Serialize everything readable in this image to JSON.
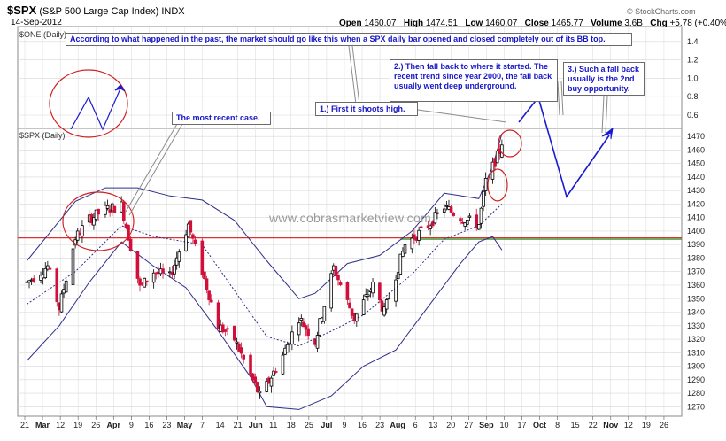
{
  "header": {
    "symbol": "$SPX",
    "name": "(S&P 500 Large Cap Index)",
    "exchange": "INDX",
    "date": "14-Sep-2012",
    "source": "© StockCharts.com",
    "open_label": "Open",
    "open": "1460.07",
    "high_label": "High",
    "high": "1474.51",
    "low_label": "Low",
    "low": "1460.07",
    "close_label": "Close",
    "close": "1465.77",
    "volume_label": "Volume",
    "volume": "3.6B",
    "chg_label": "Chg",
    "chg": "+5.78 (+0.40%)"
  },
  "panels": {
    "top_label": "$ONE (Daily)",
    "main_label": "$SPX (Daily)"
  },
  "annotations": {
    "top_note": "According to what happened in the past, the market should go like this when a SPX daily bar opened and closed completely out of its BB top.",
    "recent_case": "The most recent case.",
    "step1": "1.) First it shoots high.",
    "step2": "2.) Then fall back to where it started. The recent trend since year 2000, the fall back usually went deep underground.",
    "step3": "3.) Such a fall back usually is the 2nd buy opportunity.",
    "watermark": "www.cobrasmarketview.com"
  },
  "colors": {
    "up": "#000000",
    "down": "#d0103a",
    "bollinger": "#2e2e8c",
    "midband": "#2e2e8c",
    "red_line": "#e03030",
    "green_line": "#2ea02e",
    "arrow": "#1a1ad0",
    "circle": "#d02020",
    "grid": "#d8d8d8"
  },
  "chart_data": {
    "type": "candlestick",
    "title": "$SPX (S&P 500 Large Cap Index)",
    "y_ticks": [
      1270,
      1280,
      1290,
      1300,
      1310,
      1320,
      1330,
      1340,
      1350,
      1360,
      1370,
      1380,
      1390,
      1400,
      1410,
      1420,
      1430,
      1440,
      1450,
      1460,
      1470
    ],
    "ylim": [
      1263,
      1476
    ],
    "top_panel_ticks": [
      "0.6",
      "0.8",
      "1.0",
      "1.2",
      "1.4"
    ],
    "x_tick_labels": [
      "21",
      "Mar",
      "12",
      "19",
      "26",
      "Apr",
      "9",
      "16",
      "23",
      "May",
      "7",
      "14",
      "21",
      "Jun",
      "11",
      "18",
      "25",
      "Jul",
      "9",
      "16",
      "23",
      "Aug",
      "6",
      "13",
      "20",
      "27",
      "Sep",
      "10",
      "17",
      "Oct",
      "8",
      "15",
      "22",
      "Nov",
      "12",
      "19",
      "26"
    ],
    "close_path": [
      {
        "x": "2012-02-21",
        "y": 1362
      },
      {
        "x": "2012-03-01",
        "y": 1374
      },
      {
        "x": "2012-03-06",
        "y": 1343
      },
      {
        "x": "2012-03-13",
        "y": 1395
      },
      {
        "x": "2012-03-19",
        "y": 1409
      },
      {
        "x": "2012-03-26",
        "y": 1416
      },
      {
        "x": "2012-04-02",
        "y": 1419
      },
      {
        "x": "2012-04-10",
        "y": 1358
      },
      {
        "x": "2012-04-16",
        "y": 1370
      },
      {
        "x": "2012-04-23",
        "y": 1366
      },
      {
        "x": "2012-05-01",
        "y": 1405
      },
      {
        "x": "2012-05-07",
        "y": 1370
      },
      {
        "x": "2012-05-14",
        "y": 1330
      },
      {
        "x": "2012-05-21",
        "y": 1320
      },
      {
        "x": "2012-06-01",
        "y": 1278
      },
      {
        "x": "2012-06-04",
        "y": 1286
      },
      {
        "x": "2012-06-11",
        "y": 1308
      },
      {
        "x": "2012-06-18",
        "y": 1336
      },
      {
        "x": "2012-06-25",
        "y": 1318
      },
      {
        "x": "2012-07-03",
        "y": 1373
      },
      {
        "x": "2012-07-12",
        "y": 1335
      },
      {
        "x": "2012-07-20",
        "y": 1360
      },
      {
        "x": "2012-07-25",
        "y": 1340
      },
      {
        "x": "2012-08-03",
        "y": 1390
      },
      {
        "x": "2012-08-13",
        "y": 1404
      },
      {
        "x": "2012-08-20",
        "y": 1418
      },
      {
        "x": "2012-08-27",
        "y": 1410
      },
      {
        "x": "2012-09-04",
        "y": 1405
      },
      {
        "x": "2012-09-07",
        "y": 1437
      },
      {
        "x": "2012-09-13",
        "y": 1459
      },
      {
        "x": "2012-09-14",
        "y": 1466
      }
    ],
    "bb_upper": [
      {
        "x": "2012-02-21",
        "y": 1378
      },
      {
        "x": "2012-03-13",
        "y": 1422
      },
      {
        "x": "2012-03-26",
        "y": 1432
      },
      {
        "x": "2012-04-09",
        "y": 1432
      },
      {
        "x": "2012-04-23",
        "y": 1426
      },
      {
        "x": "2012-05-07",
        "y": 1423
      },
      {
        "x": "2012-05-21",
        "y": 1408
      },
      {
        "x": "2012-06-04",
        "y": 1378
      },
      {
        "x": "2012-06-18",
        "y": 1350
      },
      {
        "x": "2012-06-25",
        "y": 1354
      },
      {
        "x": "2012-07-09",
        "y": 1376
      },
      {
        "x": "2012-07-23",
        "y": 1382
      },
      {
        "x": "2012-08-06",
        "y": 1400
      },
      {
        "x": "2012-08-20",
        "y": 1428
      },
      {
        "x": "2012-09-04",
        "y": 1424
      },
      {
        "x": "2012-09-10",
        "y": 1448
      },
      {
        "x": "2012-09-14",
        "y": 1472
      }
    ],
    "bb_lower": [
      {
        "x": "2012-02-21",
        "y": 1304
      },
      {
        "x": "2012-03-06",
        "y": 1330
      },
      {
        "x": "2012-03-19",
        "y": 1362
      },
      {
        "x": "2012-04-02",
        "y": 1392
      },
      {
        "x": "2012-04-16",
        "y": 1374
      },
      {
        "x": "2012-04-30",
        "y": 1358
      },
      {
        "x": "2012-05-14",
        "y": 1326
      },
      {
        "x": "2012-05-28",
        "y": 1292
      },
      {
        "x": "2012-06-04",
        "y": 1270
      },
      {
        "x": "2012-06-18",
        "y": 1268
      },
      {
        "x": "2012-07-02",
        "y": 1278
      },
      {
        "x": "2012-07-16",
        "y": 1300
      },
      {
        "x": "2012-07-30",
        "y": 1312
      },
      {
        "x": "2012-08-13",
        "y": 1344
      },
      {
        "x": "2012-08-27",
        "y": 1376
      },
      {
        "x": "2012-09-04",
        "y": 1392
      },
      {
        "x": "2012-09-10",
        "y": 1396
      },
      {
        "x": "2012-09-14",
        "y": 1386
      }
    ],
    "bb_middle": [
      {
        "x": "2012-02-21",
        "y": 1346
      },
      {
        "x": "2012-03-13",
        "y": 1370
      },
      {
        "x": "2012-04-02",
        "y": 1404
      },
      {
        "x": "2012-04-16",
        "y": 1396
      },
      {
        "x": "2012-05-07",
        "y": 1390
      },
      {
        "x": "2012-05-21",
        "y": 1356
      },
      {
        "x": "2012-06-04",
        "y": 1322
      },
      {
        "x": "2012-06-18",
        "y": 1315
      },
      {
        "x": "2012-07-02",
        "y": 1326
      },
      {
        "x": "2012-07-16",
        "y": 1338
      },
      {
        "x": "2012-08-06",
        "y": 1368
      },
      {
        "x": "2012-08-20",
        "y": 1394
      },
      {
        "x": "2012-09-04",
        "y": 1404
      },
      {
        "x": "2012-09-14",
        "y": 1420
      }
    ],
    "horizontal_lines": [
      {
        "name": "red",
        "y": 1395
      },
      {
        "name": "green",
        "y": 1394
      }
    ]
  }
}
